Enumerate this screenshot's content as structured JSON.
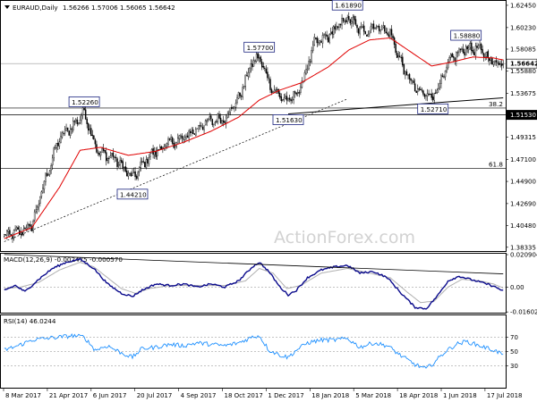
{
  "header": {
    "symbol_line": "EURAUD,Daily",
    "ohlc": "1.56266 1.57006 1.56065 1.56642"
  },
  "watermark": "ActionForex.com",
  "colors": {
    "candle": "#000000",
    "ma": "#e00000",
    "macd": "#0a0a8c",
    "signal": "#b0b0b0",
    "rsi": "#1e90ff",
    "trendline": "#000000",
    "fib_line": "#000000"
  },
  "chart_data": [
    {
      "type": "candlestick",
      "panel": "price",
      "x_tick_labels": [
        "8 Mar 2017",
        "21 Apr 2017",
        "6 Jun 2017",
        "20 Jul 2017",
        "4 Sep 2017",
        "18 Oct 2017",
        "1 Dec 2017",
        "18 Jan 2018",
        "5 Mar 2018",
        "18 Apr 2018",
        "1 Jun 2018",
        "17 Jul 2018"
      ],
      "y_tick_labels": [
        "1.62450",
        "1.60230",
        "1.58085",
        "1.55880",
        "1.53675",
        "1.51530",
        "1.49315",
        "1.47100",
        "1.44900",
        "1.42690",
        "1.40480",
        "1.38335"
      ],
      "ylim": [
        1.3805,
        1.628
      ],
      "current_price_label": "1.56642",
      "key_levels": [
        {
          "label": "1.51530",
          "value": 1.5153,
          "boxed": true
        }
      ],
      "fibonacci": [
        {
          "label": "38.2",
          "value": 1.5221
        },
        {
          "label": "61.8",
          "value": 1.4618
        }
      ],
      "annotations": [
        {
          "label": "1.61890",
          "value": 1.6189,
          "bar": 249
        },
        {
          "label": "1.57700",
          "value": 1.577,
          "bar": 185
        },
        {
          "label": "1.58880",
          "value": 1.5888,
          "bar": 335
        },
        {
          "label": "1.52260",
          "value": 1.5226,
          "bar": 58
        },
        {
          "label": "1.51630",
          "value": 1.5163,
          "bar": 206
        },
        {
          "label": "1.52710",
          "value": 1.5271,
          "bar": 311
        },
        {
          "label": "1.44210",
          "value": 1.4421,
          "bar": 93
        }
      ],
      "close_anchors": [
        [
          0,
          1.395
        ],
        [
          10,
          1.398
        ],
        [
          20,
          1.405
        ],
        [
          30,
          1.452
        ],
        [
          40,
          1.492
        ],
        [
          50,
          1.505
        ],
        [
          58,
          1.518
        ],
        [
          68,
          1.478
        ],
        [
          80,
          1.472
        ],
        [
          93,
          1.452
        ],
        [
          105,
          1.474
        ],
        [
          118,
          1.486
        ],
        [
          130,
          1.492
        ],
        [
          145,
          1.507
        ],
        [
          160,
          1.512
        ],
        [
          170,
          1.532
        ],
        [
          180,
          1.568
        ],
        [
          185,
          1.572
        ],
        [
          195,
          1.54
        ],
        [
          206,
          1.528
        ],
        [
          215,
          1.542
        ],
        [
          225,
          1.586
        ],
        [
          235,
          1.594
        ],
        [
          249,
          1.612
        ],
        [
          260,
          1.598
        ],
        [
          270,
          1.604
        ],
        [
          280,
          1.596
        ],
        [
          290,
          1.56
        ],
        [
          300,
          1.538
        ],
        [
          311,
          1.534
        ],
        [
          318,
          1.552
        ],
        [
          325,
          1.573
        ],
        [
          335,
          1.582
        ],
        [
          345,
          1.58
        ],
        [
          355,
          1.568
        ],
        [
          362,
          1.5664
        ]
      ],
      "moving_average_anchors": [
        [
          0,
          1.392
        ],
        [
          20,
          1.403
        ],
        [
          40,
          1.443
        ],
        [
          55,
          1.48
        ],
        [
          70,
          1.483
        ],
        [
          90,
          1.475
        ],
        [
          110,
          1.479
        ],
        [
          130,
          1.488
        ],
        [
          150,
          1.499
        ],
        [
          170,
          1.513
        ],
        [
          185,
          1.53
        ],
        [
          200,
          1.54
        ],
        [
          215,
          1.547
        ],
        [
          235,
          1.563
        ],
        [
          250,
          1.58
        ],
        [
          265,
          1.59
        ],
        [
          280,
          1.592
        ],
        [
          295,
          1.578
        ],
        [
          310,
          1.564
        ],
        [
          325,
          1.568
        ],
        [
          340,
          1.573
        ],
        [
          355,
          1.572
        ],
        [
          362,
          1.57
        ]
      ]
    },
    {
      "type": "line",
      "panel": "macd",
      "title": "MACD(12,26,9) -0.002475 -0.000570",
      "y_tick_labels": [
        "0.020904",
        "0.00",
        "-0.016023"
      ],
      "ylim": [
        -0.0165,
        0.0215
      ],
      "series": [
        {
          "anchors": [
            [
              0,
              -0.002
            ],
            [
              8,
              0.001
            ],
            [
              15,
              -0.003
            ],
            [
              25,
              0.005
            ],
            [
              35,
              0.012
            ],
            [
              45,
              0.016
            ],
            [
              55,
              0.018
            ],
            [
              65,
              0.012
            ],
            [
              75,
              0.002
            ],
            [
              85,
              -0.004
            ],
            [
              93,
              -0.006
            ],
            [
              100,
              -0.002
            ],
            [
              110,
              0.002
            ],
            [
              120,
              0.001
            ],
            [
              130,
              0.002
            ],
            [
              140,
              0.0
            ],
            [
              150,
              0.002
            ],
            [
              160,
              0.0
            ],
            [
              170,
              0.004
            ],
            [
              180,
              0.013
            ],
            [
              185,
              0.016
            ],
            [
              192,
              0.01
            ],
            [
              200,
              0.0
            ],
            [
              206,
              -0.005
            ],
            [
              212,
              -0.002
            ],
            [
              220,
              0.006
            ],
            [
              230,
              0.011
            ],
            [
              240,
              0.013
            ],
            [
              249,
              0.014
            ],
            [
              258,
              0.009
            ],
            [
              268,
              0.01
            ],
            [
              278,
              0.006
            ],
            [
              288,
              -0.004
            ],
            [
              298,
              -0.013
            ],
            [
              306,
              -0.014
            ],
            [
              314,
              -0.006
            ],
            [
              322,
              0.004
            ],
            [
              330,
              0.007
            ],
            [
              338,
              0.005
            ],
            [
              346,
              0.003
            ],
            [
              354,
              0.001
            ],
            [
              362,
              -0.0025
            ]
          ]
        },
        {
          "anchors": [
            [
              0,
              -0.001
            ],
            [
              12,
              0.0
            ],
            [
              25,
              0.003
            ],
            [
              40,
              0.011
            ],
            [
              55,
              0.016
            ],
            [
              65,
              0.013
            ],
            [
              75,
              0.006
            ],
            [
              85,
              -0.001
            ],
            [
              95,
              -0.004
            ],
            [
              105,
              -0.001
            ],
            [
              120,
              0.001
            ],
            [
              140,
              0.001
            ],
            [
              160,
              0.001
            ],
            [
              175,
              0.004
            ],
            [
              185,
              0.012
            ],
            [
              195,
              0.009
            ],
            [
              205,
              -0.001
            ],
            [
              215,
              0.001
            ],
            [
              230,
              0.009
            ],
            [
              249,
              0.012
            ],
            [
              265,
              0.009
            ],
            [
              280,
              0.006
            ],
            [
              292,
              -0.003
            ],
            [
              302,
              -0.01
            ],
            [
              312,
              -0.009
            ],
            [
              322,
              0.0
            ],
            [
              332,
              0.005
            ],
            [
              345,
              0.004
            ],
            [
              355,
              0.002
            ],
            [
              362,
              -0.0006
            ]
          ]
        }
      ],
      "trendline_values": [
        0.021,
        0.0085
      ]
    },
    {
      "type": "line",
      "panel": "rsi",
      "title": "RSI(14) 46.0244",
      "y_tick_labels": [
        "70",
        "50",
        "30"
      ],
      "ylim": [
        0,
        100
      ],
      "levels": [
        70,
        50,
        30
      ],
      "anchors": [
        [
          0,
          52
        ],
        [
          10,
          58
        ],
        [
          20,
          66
        ],
        [
          30,
          68
        ],
        [
          40,
          70
        ],
        [
          50,
          72
        ],
        [
          58,
          70
        ],
        [
          66,
          52
        ],
        [
          75,
          58
        ],
        [
          85,
          48
        ],
        [
          93,
          42
        ],
        [
          100,
          54
        ],
        [
          110,
          56
        ],
        [
          120,
          60
        ],
        [
          130,
          58
        ],
        [
          140,
          62
        ],
        [
          150,
          60
        ],
        [
          160,
          58
        ],
        [
          170,
          62
        ],
        [
          180,
          70
        ],
        [
          185,
          72
        ],
        [
          192,
          52
        ],
        [
          200,
          45
        ],
        [
          206,
          42
        ],
        [
          212,
          52
        ],
        [
          220,
          62
        ],
        [
          230,
          66
        ],
        [
          240,
          66
        ],
        [
          249,
          68
        ],
        [
          258,
          56
        ],
        [
          268,
          62
        ],
        [
          278,
          58
        ],
        [
          288,
          44
        ],
        [
          298,
          32
        ],
        [
          306,
          26
        ],
        [
          312,
          35
        ],
        [
          320,
          50
        ],
        [
          328,
          60
        ],
        [
          335,
          64
        ],
        [
          345,
          58
        ],
        [
          355,
          52
        ],
        [
          362,
          46
        ]
      ]
    }
  ]
}
